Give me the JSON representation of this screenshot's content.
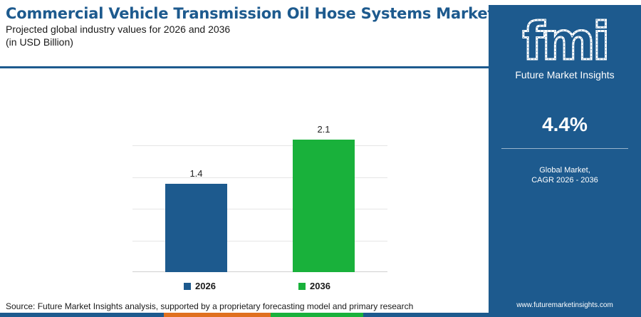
{
  "header": {
    "title": "Commercial Vehicle Transmission Oil Hose Systems Market",
    "subtitle_line1": "Projected global industry values for 2026 and 2036",
    "subtitle_line2": "(in USD Billion)"
  },
  "chart_data": {
    "type": "bar",
    "categories": [
      "2026",
      "2036"
    ],
    "values": [
      1.4,
      2.1
    ],
    "data_labels": [
      "1.4",
      "2.1"
    ],
    "colors": [
      "#1d5a8e",
      "#19b13b"
    ],
    "ylim": [
      0,
      2.5
    ],
    "grid": true,
    "legend": [
      {
        "label": "2026",
        "color": "#1d5a8e"
      },
      {
        "label": "2036",
        "color": "#19b13b"
      }
    ],
    "legend_position": "bottom"
  },
  "footer": {
    "source": "Source: Future Market Insights analysis, supported by a proprietary forecasting model and primary research",
    "strip_colors": [
      "#1d5a8e",
      "#e0701f",
      "#19b13b",
      "#1d5a8e"
    ]
  },
  "sidebar": {
    "logo_text": "fmi",
    "logo_name": "Future Market Insights",
    "cagr_value": "4.4%",
    "cagr_label_line1": "Global Market,",
    "cagr_label_line2": "CAGR 2026 - 2036",
    "website": "www.futuremarketinsights.com",
    "background": "#1d5a8e"
  }
}
